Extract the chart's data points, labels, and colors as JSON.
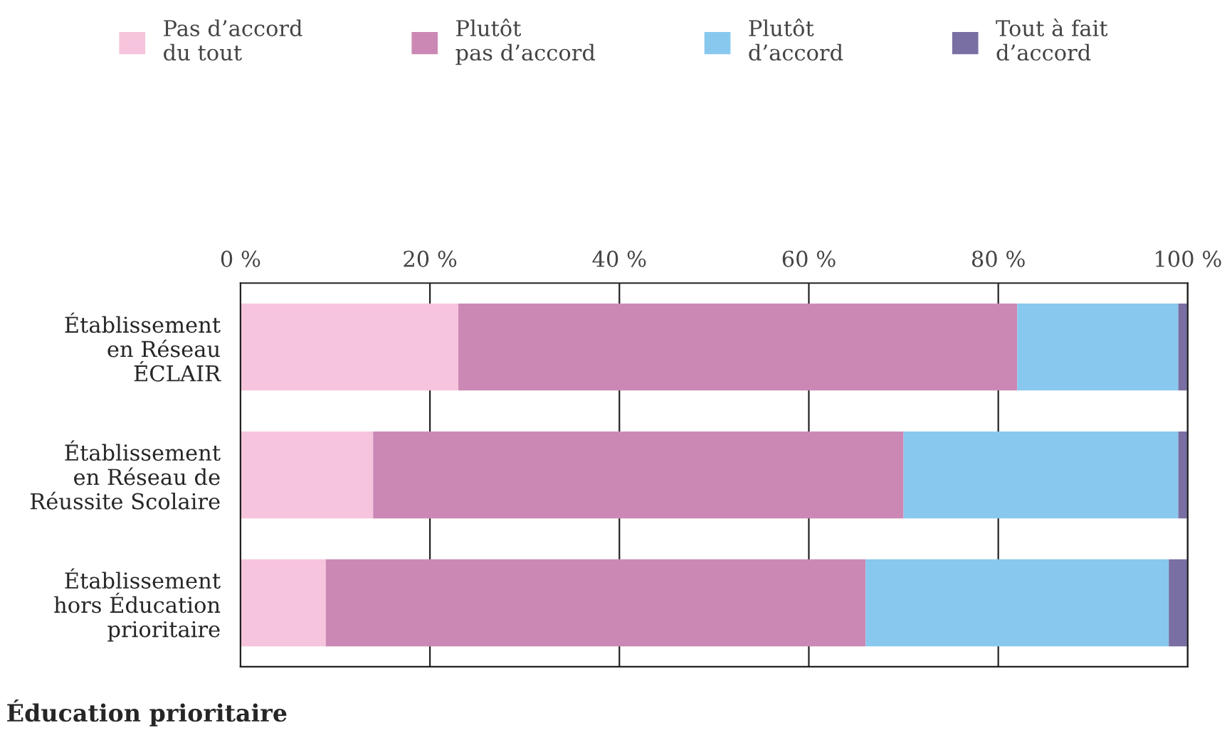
{
  "chart_data": {
    "type": "bar",
    "orientation": "horizontal",
    "stacked": true,
    "title": "Éducation prioritaire",
    "categories": [
      "Établissement\nen Réseau\nÉCLAIR",
      "Établissement\nen Réseau de\nRéussite Scolaire",
      "Établissement\nhors Éducation\nprioritaire"
    ],
    "series": [
      {
        "name": "Pas d’accord\ndu tout",
        "color": "#f6c4dc",
        "values": [
          23,
          14,
          9
        ]
      },
      {
        "name": "Plutôt\npas d’accord",
        "color": "#cc88b5",
        "values": [
          59,
          56,
          57
        ]
      },
      {
        "name": "Plutôt\nd’accord",
        "color": "#88c8ee",
        "values": [
          17,
          29,
          32
        ]
      },
      {
        "name": "Tout à fait\nd’accord",
        "color": "#7a6fa3",
        "values": [
          1,
          1,
          2
        ]
      }
    ],
    "xlim": [
      0,
      100
    ],
    "xticks": [
      {
        "value": 0,
        "label": "0 %"
      },
      {
        "value": 20,
        "label": "20 %"
      },
      {
        "value": 40,
        "label": "40 %"
      },
      {
        "value": 60,
        "label": "60 %"
      },
      {
        "value": 80,
        "label": "80 %"
      },
      {
        "value": 100,
        "label": "100 %"
      }
    ],
    "grid": "x",
    "legend": "top"
  }
}
